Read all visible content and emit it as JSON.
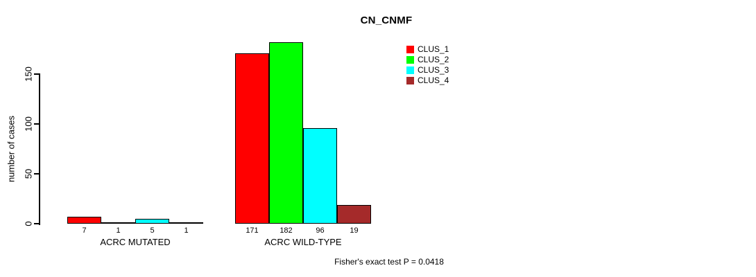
{
  "chart_data": {
    "type": "bar",
    "title": "CN_CNMF",
    "xlabel": "",
    "ylabel": "number of cases",
    "categories": [
      "ACRC MUTATED",
      "ACRC WILD-TYPE"
    ],
    "series": [
      {
        "name": "CLUS_1",
        "color": "#ff0000",
        "values": [
          7,
          171
        ]
      },
      {
        "name": "CLUS_2",
        "color": "#00ff00",
        "values": [
          1,
          182
        ]
      },
      {
        "name": "CLUS_3",
        "color": "#00ffff",
        "values": [
          5,
          96
        ]
      },
      {
        "name": "CLUS_4",
        "color": "#a52a2a",
        "values": [
          1,
          19
        ]
      }
    ],
    "yticks": [
      0,
      50,
      100,
      150
    ],
    "ylim": [
      0,
      190
    ],
    "grid": false,
    "legend_position": "top-right",
    "bar_value_labels_shown": true,
    "annotation": "Fisher's exact test P = 0.0418"
  }
}
